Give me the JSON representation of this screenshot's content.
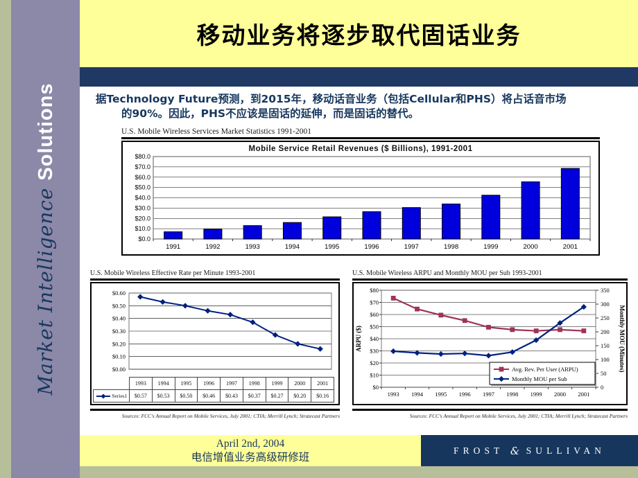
{
  "slide": {
    "title": "移动业务将逐步取代固话业务",
    "intro_line1": "据Technology Future预测，到2015年，移动话音业务（包括Cellular和PHS）将占话音市场",
    "intro_line2": "的90%。因此，PHS不应该是固话的延伸，而是固话的替代。"
  },
  "sidebar": {
    "market": "Market ",
    "intelligence": "Intelligence ",
    "solutions": "Solutions"
  },
  "footer": {
    "date": "April 2nd, 2004",
    "event": "电信增值业务高级研修班",
    "brand_left": "FROST",
    "brand_amp": "&",
    "brand_right": "SULLIVAN"
  },
  "colors": {
    "title_band_yellow": "#FFFF99",
    "navy_band": "#1F3864",
    "footer_navy": "#17365D",
    "sidebar_purple": "#8B88A8",
    "sage_green": "#B6BF99",
    "intro_text_navy": "#17375E",
    "bar_blue": "#0000DC",
    "mou_line_navy": "#002080",
    "arpu_line_crimson": "#A03358"
  },
  "chart_data": [
    {
      "type": "bar",
      "heading": "U.S. Mobile Wireless Services Market Statistics 1991-2001",
      "title": "Mobile Service Retail Revenues ($ Billions), 1991-2001",
      "categories": [
        "1991",
        "1992",
        "1993",
        "1994",
        "1995",
        "1996",
        "1997",
        "1998",
        "1999",
        "2000",
        "2001"
      ],
      "values": [
        7,
        9.5,
        13,
        16,
        21.5,
        26.5,
        30.5,
        34,
        42.5,
        55.5,
        68.5
      ],
      "ylim": [
        0,
        80
      ],
      "ytick_step": 10,
      "yticks": [
        "$0.0",
        "$10.0",
        "$20.0",
        "$30.0",
        "$40.0",
        "$50.0",
        "$60.0",
        "$70.0",
        "$80.0"
      ],
      "bar_color": "#0000DC",
      "grid": true,
      "legend": "none"
    },
    {
      "type": "line",
      "heading": "U.S. Mobile Wireless Effective Rate per Minute 1993-2001",
      "categories": [
        "1993",
        "1994",
        "1995",
        "1996",
        "1997",
        "1998",
        "1999",
        "2000",
        "2001"
      ],
      "series": [
        {
          "name": "Series1",
          "color": "#002080",
          "marker": "diamond",
          "values": [
            0.57,
            0.53,
            0.5,
            0.46,
            0.43,
            0.37,
            0.27,
            0.2,
            0.16
          ],
          "display_values": [
            "$0.57",
            "$0.53",
            "$0.50",
            "$0.46",
            "$0.43",
            "$0.37",
            "$0.27",
            "$0.20",
            "$0.16"
          ]
        }
      ],
      "ylim": [
        0,
        0.6
      ],
      "ytick_step": 0.1,
      "yticks": [
        "$0.00",
        "$0.10",
        "$0.20",
        "$0.30",
        "$0.40",
        "$0.50",
        "$0.60"
      ],
      "grid": true,
      "data_table": true,
      "legend": "table",
      "source": "Sources: FCC's Annual Report on Mobile Services, July 2001; CTIA; Merrill Lynch; Stratecast Partners"
    },
    {
      "type": "line-dual",
      "heading": "U.S. Mobile Wireless ARPU and Monthly MOU per Sub 1993-2001",
      "categories": [
        "1993",
        "1994",
        "1995",
        "1996",
        "1997",
        "1998",
        "1999",
        "2000",
        "2001"
      ],
      "left_axis": {
        "label": "ARPU ($)",
        "lim": [
          0,
          80
        ],
        "step": 10,
        "ticks": [
          "$0",
          "$10",
          "$20",
          "$30",
          "$40",
          "$50",
          "$60",
          "$70",
          "$80"
        ]
      },
      "right_axis": {
        "label": "Monthly MOU (Minutes)",
        "lim": [
          0,
          350
        ],
        "step": 50,
        "ticks": [
          "0",
          "50",
          "100",
          "150",
          "200",
          "250",
          "300",
          "350"
        ]
      },
      "series": [
        {
          "name": "Avg. Rev. Per User (ARPU)",
          "axis": "left",
          "color": "#A03358",
          "marker": "square",
          "values": [
            73.5,
            64.5,
            59.5,
            55,
            49.5,
            47.5,
            46.5,
            47.5,
            46.5
          ]
        },
        {
          "name": "Monthly MOU per Sub",
          "axis": "right",
          "color": "#002080",
          "marker": "diamond",
          "values": [
            130,
            124,
            120,
            122,
            114,
            127,
            170,
            232,
            290
          ]
        }
      ],
      "grid": true,
      "legend": "inside-bottom-right",
      "source": "Sources: FCC's Annual Report on Mobile Services, July 2001; CTIA; Merrill Lynch; Stratecast Partners"
    }
  ]
}
